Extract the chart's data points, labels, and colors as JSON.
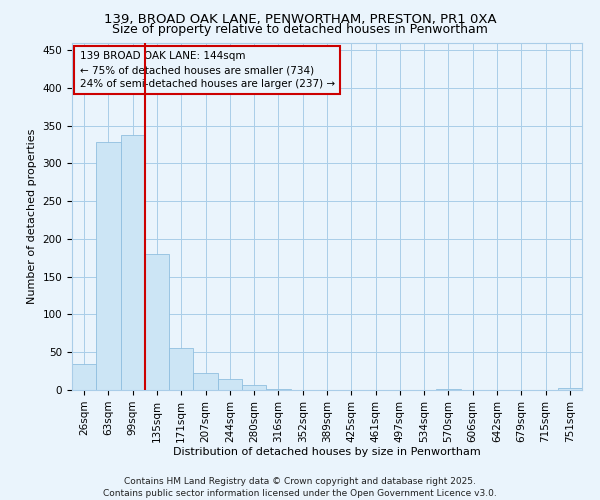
{
  "title_line1": "139, BROAD OAK LANE, PENWORTHAM, PRESTON, PR1 0XA",
  "title_line2": "Size of property relative to detached houses in Penwortham",
  "xlabel": "Distribution of detached houses by size in Penwortham",
  "ylabel": "Number of detached properties",
  "categories": [
    "26sqm",
    "63sqm",
    "99sqm",
    "135sqm",
    "171sqm",
    "207sqm",
    "244sqm",
    "280sqm",
    "316sqm",
    "352sqm",
    "389sqm",
    "425sqm",
    "461sqm",
    "497sqm",
    "534sqm",
    "570sqm",
    "606sqm",
    "642sqm",
    "679sqm",
    "715sqm",
    "751sqm"
  ],
  "values": [
    35,
    328,
    338,
    180,
    55,
    22,
    14,
    6,
    1,
    0,
    0,
    0,
    0,
    0,
    0,
    1,
    0,
    0,
    0,
    0,
    2
  ],
  "bar_color": "#cce5f5",
  "bar_edgecolor": "#90bfdf",
  "vline_x_index": 3,
  "vline_color": "#cc0000",
  "annotation_title": "139 BROAD OAK LANE: 144sqm",
  "annotation_line2": "← 75% of detached houses are smaller (734)",
  "annotation_line3": "24% of semi-detached houses are larger (237) →",
  "annotation_box_edgecolor": "#cc0000",
  "ylim": [
    0,
    460
  ],
  "yticks": [
    0,
    50,
    100,
    150,
    200,
    250,
    300,
    350,
    400,
    450
  ],
  "footer1": "Contains HM Land Registry data © Crown copyright and database right 2025.",
  "footer2": "Contains public sector information licensed under the Open Government Licence v3.0.",
  "bg_color": "#eaf4fc",
  "grid_color": "#aacde8",
  "title1_fontsize": 9.5,
  "title2_fontsize": 9,
  "axis_label_fontsize": 8,
  "tick_fontsize": 7.5,
  "footer_fontsize": 6.5
}
